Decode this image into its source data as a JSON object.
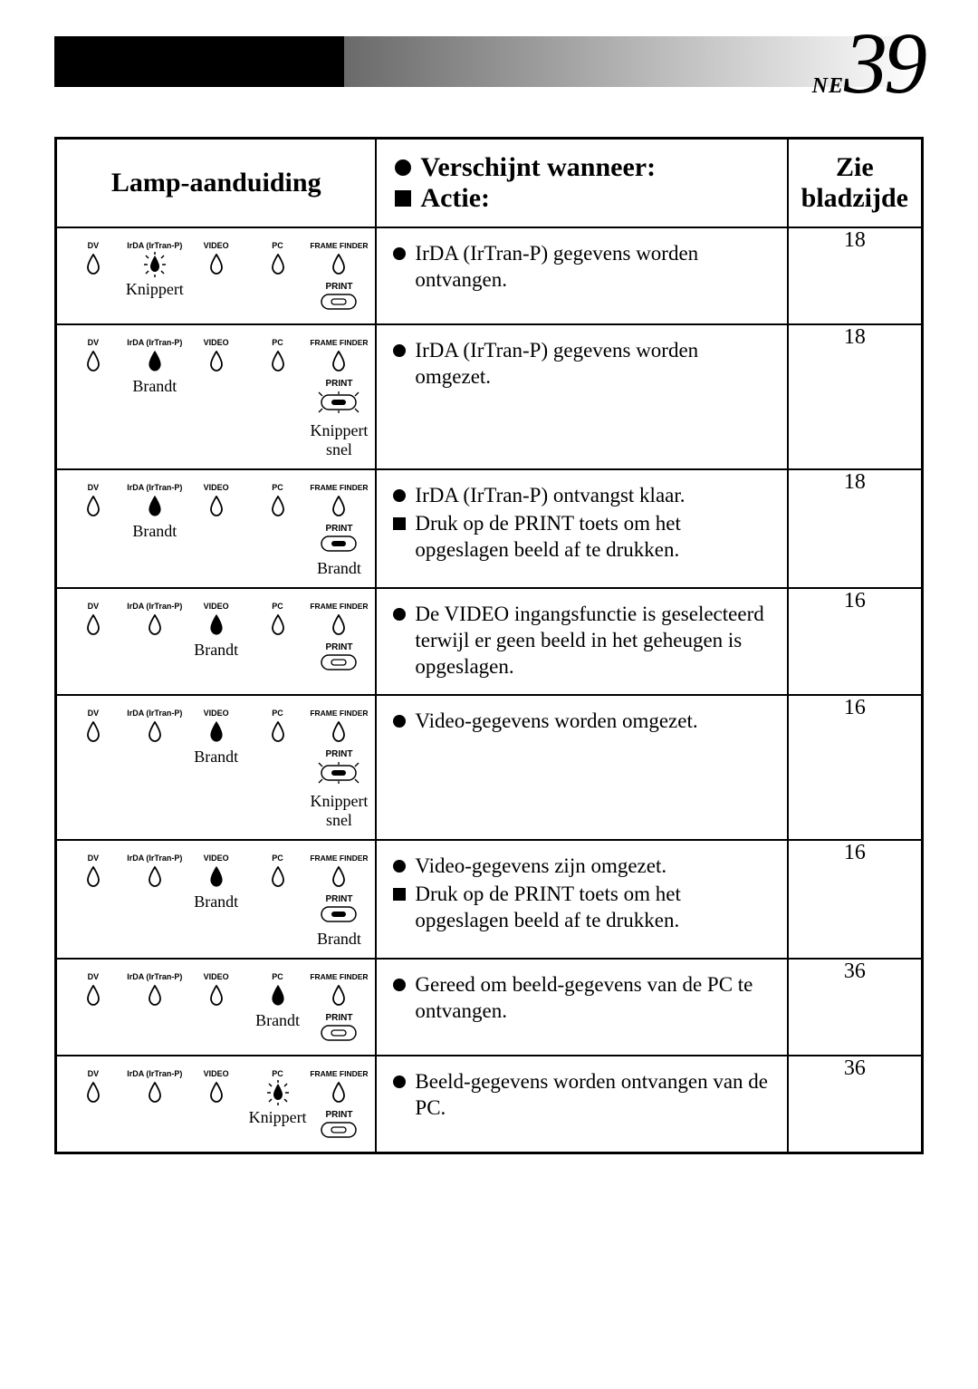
{
  "page": {
    "ne": "NE",
    "number": "39"
  },
  "colors": {
    "black": "#000000",
    "white": "#ffffff",
    "gradient_start": "#6a6a6a",
    "gradient_end": "#ffffff"
  },
  "headers": {
    "lamp": "Lamp-aanduiding",
    "appears": "Verschijnt wanneer:",
    "action": "Actie:",
    "see_page": "Zie bladzijde"
  },
  "lamp_col_labels": {
    "dv": "DV",
    "irda": "IrDA (IrTran-P)",
    "video": "VIDEO",
    "pc": "PC",
    "frame_finder": "FRAME FINDER",
    "print": "PRINT"
  },
  "states": {
    "knippert": "Knippert",
    "brandt": "Brandt",
    "knippert_snel": "Knippert snel"
  },
  "rows": [
    {
      "lamps": {
        "dv": "off",
        "irda": "flash",
        "video": "off",
        "pc": "off",
        "ff": "off",
        "print": "off"
      },
      "irda_state": "knippert",
      "video_state": "",
      "pc_state": "",
      "print_state": "",
      "appears": "IrDA (IrTran-P) gegevens worden ontvangen.",
      "action": "",
      "page": "18"
    },
    {
      "lamps": {
        "dv": "off",
        "irda": "on",
        "video": "off",
        "pc": "off",
        "ff": "off",
        "print": "flash"
      },
      "irda_state": "brandt",
      "video_state": "",
      "pc_state": "",
      "print_state": "knippert_snel",
      "appears": "IrDA (IrTran-P) gegevens worden omgezet.",
      "action": "",
      "page": "18"
    },
    {
      "lamps": {
        "dv": "off",
        "irda": "on",
        "video": "off",
        "pc": "off",
        "ff": "off",
        "print": "on"
      },
      "irda_state": "brandt",
      "video_state": "",
      "pc_state": "",
      "print_state": "brandt",
      "appears": "IrDA (IrTran-P) ontvangst klaar.",
      "action": "Druk op de PRINT toets om het opgeslagen beeld af te drukken.",
      "page": "18"
    },
    {
      "lamps": {
        "dv": "off",
        "irda": "off",
        "video": "on",
        "pc": "off",
        "ff": "off",
        "print": "off"
      },
      "irda_state": "",
      "video_state": "brandt",
      "pc_state": "",
      "print_state": "",
      "appears": "De VIDEO ingangsfunctie is geselecteerd terwijl er geen beeld in het geheugen is opgeslagen.",
      "action": "",
      "page": "16"
    },
    {
      "lamps": {
        "dv": "off",
        "irda": "off",
        "video": "on",
        "pc": "off",
        "ff": "off",
        "print": "flash"
      },
      "irda_state": "",
      "video_state": "brandt",
      "pc_state": "",
      "print_state": "knippert_snel",
      "appears": "Video-gegevens worden omgezet.",
      "action": "",
      "page": "16"
    },
    {
      "lamps": {
        "dv": "off",
        "irda": "off",
        "video": "on",
        "pc": "off",
        "ff": "off",
        "print": "on"
      },
      "irda_state": "",
      "video_state": "brandt",
      "pc_state": "",
      "print_state": "brandt",
      "appears": "Video-gegevens zijn omgezet.",
      "action": "Druk op de PRINT toets om het opgeslagen beeld af te drukken.",
      "page": "16"
    },
    {
      "lamps": {
        "dv": "off",
        "irda": "off",
        "video": "off",
        "pc": "on",
        "ff": "off",
        "print": "off"
      },
      "irda_state": "",
      "video_state": "",
      "pc_state": "brandt",
      "print_state": "",
      "appears": "Gereed om beeld-gegevens van de PC te ontvangen.",
      "action": "",
      "page": "36"
    },
    {
      "lamps": {
        "dv": "off",
        "irda": "off",
        "video": "off",
        "pc": "flash",
        "ff": "off",
        "print": "off"
      },
      "irda_state": "",
      "video_state": "",
      "pc_state": "knippert",
      "print_state": "",
      "appears": "Beeld-gegevens worden ontvangen van de PC.",
      "action": "",
      "page": "36"
    }
  ]
}
